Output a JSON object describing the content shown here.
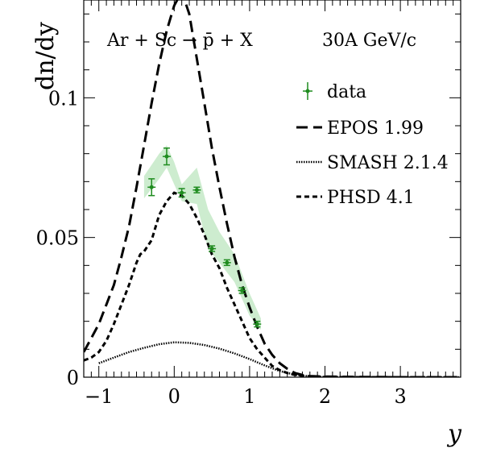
{
  "chart_data": {
    "type": "line",
    "annotations": {
      "reaction": "Ar + Sc → p̄ + X",
      "energy": "30A GeV/c"
    },
    "xlabel": "y",
    "ylabel": "dn/dy",
    "xlim": [
      -1.2,
      3.8
    ],
    "ylim": [
      0,
      0.135
    ],
    "x_ticks": [
      {
        "value": -1,
        "label": "−1"
      },
      {
        "value": 0,
        "label": "0"
      },
      {
        "value": 1,
        "label": "1"
      },
      {
        "value": 2,
        "label": "2"
      },
      {
        "value": 3,
        "label": "3"
      }
    ],
    "y_ticks": [
      {
        "value": 0,
        "label": "0"
      },
      {
        "value": 0.05,
        "label": "0.05"
      },
      {
        "value": 0.1,
        "label": "0.1"
      }
    ],
    "grid": false,
    "legend_position": "top-right",
    "legend": [
      {
        "key": "data",
        "label": "data"
      },
      {
        "key": "epos",
        "label": "EPOS 1.99"
      },
      {
        "key": "smash",
        "label": "SMASH 2.1.4"
      },
      {
        "key": "phsd",
        "label": "PHSD 4.1"
      }
    ],
    "colors": {
      "data": "#1f8c1f",
      "band": "#cdeccf",
      "model": "#000000"
    },
    "data_points": [
      {
        "x": -0.3,
        "y": 0.068,
        "yerr": 0.003
      },
      {
        "x": -0.1,
        "y": 0.079,
        "yerr": 0.003
      },
      {
        "x": 0.1,
        "y": 0.066,
        "yerr": 0.0015
      },
      {
        "x": 0.3,
        "y": 0.067,
        "yerr": 0.001
      },
      {
        "x": 0.5,
        "y": 0.046,
        "yerr": 0.001
      },
      {
        "x": 0.7,
        "y": 0.041,
        "yerr": 0.001
      },
      {
        "x": 0.9,
        "y": 0.031,
        "yerr": 0.001
      },
      {
        "x": 1.1,
        "y": 0.019,
        "yerr": 0.001
      }
    ],
    "systematic_band": [
      {
        "x": -0.4,
        "lo": 0.064,
        "hi": 0.072
      },
      {
        "x": -0.2,
        "lo": 0.071,
        "hi": 0.08
      },
      {
        "x": -0.1,
        "lo": 0.075,
        "hi": 0.083
      },
      {
        "x": 0.0,
        "lo": 0.069,
        "hi": 0.077
      },
      {
        "x": 0.1,
        "lo": 0.063,
        "hi": 0.069
      },
      {
        "x": 0.3,
        "lo": 0.062,
        "hi": 0.075
      },
      {
        "x": 0.45,
        "lo": 0.046,
        "hi": 0.06
      },
      {
        "x": 0.6,
        "lo": 0.041,
        "hi": 0.052
      },
      {
        "x": 0.8,
        "lo": 0.034,
        "hi": 0.044
      },
      {
        "x": 1.0,
        "lo": 0.022,
        "hi": 0.03
      },
      {
        "x": 1.15,
        "lo": 0.017,
        "hi": 0.021
      }
    ],
    "series": [
      {
        "name": "EPOS 1.99",
        "x": [
          -1.2,
          -1.1,
          -1.0,
          -0.9,
          -0.8,
          -0.7,
          -0.6,
          -0.5,
          -0.4,
          -0.3,
          -0.2,
          -0.1,
          0.0,
          0.1,
          0.2,
          0.3,
          0.4,
          0.5,
          0.6,
          0.7,
          0.8,
          0.9,
          1.0,
          1.1,
          1.2,
          1.3,
          1.4,
          1.5,
          1.6,
          1.7,
          1.8,
          2.0,
          2.5,
          3.0,
          3.8
        ],
        "y": [
          0.009,
          0.014,
          0.019,
          0.026,
          0.033,
          0.043,
          0.054,
          0.068,
          0.083,
          0.098,
          0.112,
          0.124,
          0.133,
          0.138,
          0.13,
          0.114,
          0.098,
          0.082,
          0.068,
          0.055,
          0.043,
          0.033,
          0.025,
          0.018,
          0.012,
          0.008,
          0.005,
          0.003,
          0.0015,
          0.0008,
          0.0004,
          0.0002,
          0.0001,
          0.0,
          0.0
        ]
      },
      {
        "name": "SMASH 2.1.4",
        "x": [
          -1.0,
          -0.8,
          -0.6,
          -0.4,
          -0.2,
          0.0,
          0.2,
          0.4,
          0.6,
          0.8,
          1.0,
          1.2,
          1.4,
          1.6,
          1.8,
          2.0,
          2.5,
          3.0,
          3.8
        ],
        "y": [
          0.005,
          0.007,
          0.009,
          0.0105,
          0.0118,
          0.0125,
          0.0123,
          0.0115,
          0.0102,
          0.0085,
          0.0065,
          0.0042,
          0.0022,
          0.0009,
          0.0003,
          0.0001,
          0.0,
          0.0,
          0.0
        ]
      },
      {
        "name": "PHSD 4.1",
        "x": [
          -1.2,
          -1.1,
          -1.0,
          -0.9,
          -0.8,
          -0.7,
          -0.6,
          -0.5,
          -0.45,
          -0.4,
          -0.3,
          -0.2,
          -0.1,
          0.0,
          0.1,
          0.2,
          0.3,
          0.4,
          0.5,
          0.6,
          0.7,
          0.8,
          0.9,
          1.0,
          1.1,
          1.2,
          1.3,
          1.4,
          1.5,
          1.6,
          1.8,
          2.0,
          2.5,
          3.0,
          3.8
        ],
        "y": [
          0.006,
          0.007,
          0.009,
          0.013,
          0.019,
          0.026,
          0.033,
          0.041,
          0.044,
          0.045,
          0.049,
          0.058,
          0.063,
          0.066,
          0.065,
          0.062,
          0.057,
          0.051,
          0.044,
          0.039,
          0.032,
          0.026,
          0.02,
          0.014,
          0.01,
          0.007,
          0.004,
          0.0025,
          0.0015,
          0.0008,
          0.0003,
          0.0001,
          0.0,
          0.0,
          0.0
        ]
      }
    ]
  }
}
